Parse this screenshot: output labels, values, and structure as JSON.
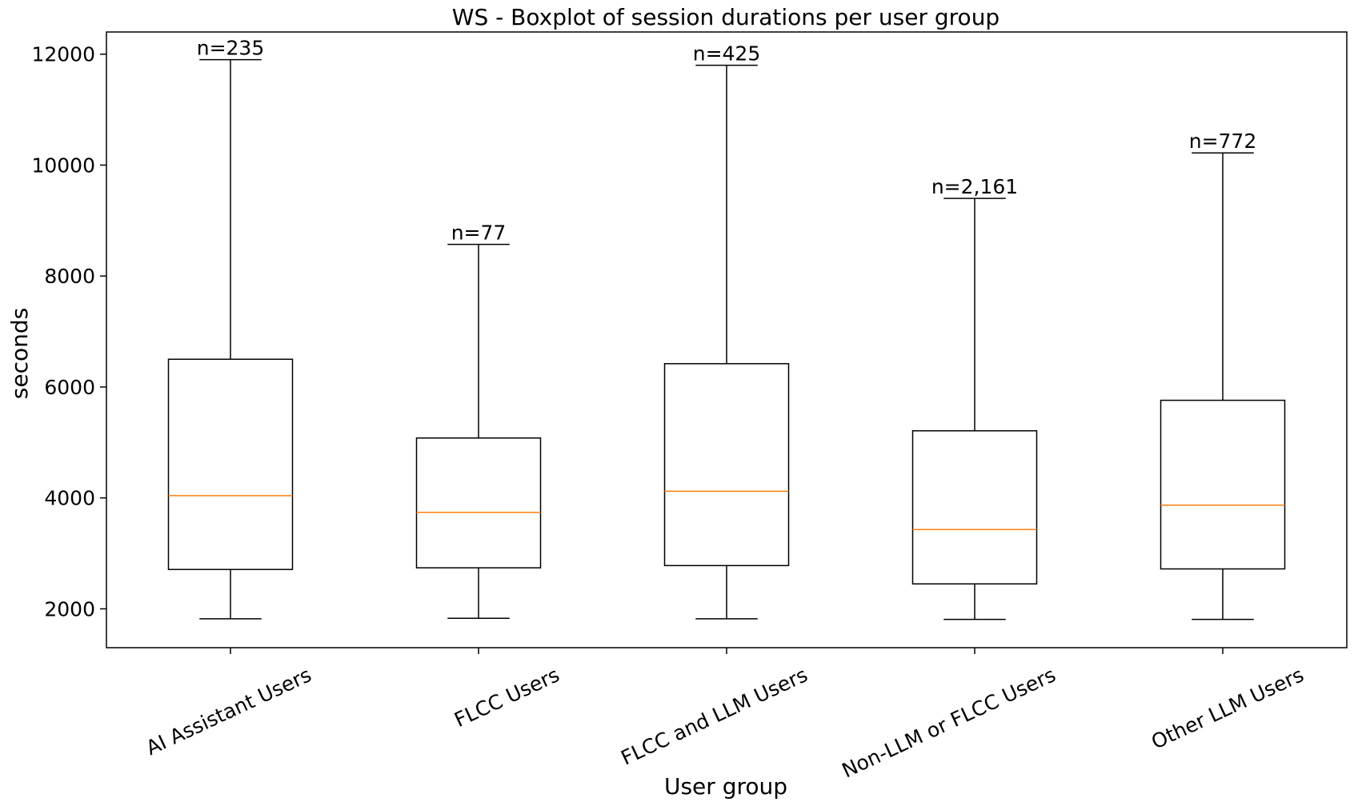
{
  "chart_data": {
    "type": "boxplot",
    "title": "WS - Boxplot of session durations per user group",
    "xlabel": "User group",
    "ylabel": "seconds",
    "ylim": [
      1300,
      12400
    ],
    "yticks": [
      2000,
      4000,
      6000,
      8000,
      10000,
      12000
    ],
    "grid": false,
    "categories": [
      "AI Assistant Users",
      "FLCC Users",
      "FLCC and LLM Users",
      "Non-LLM or FLCC Users",
      "Other LLM Users"
    ],
    "boxes": [
      {
        "whisker_low": 1820,
        "q1": 2710,
        "median": 4040,
        "q3": 6500,
        "whisker_high": 11900,
        "count_label": "n=235"
      },
      {
        "whisker_low": 1830,
        "q1": 2740,
        "median": 3740,
        "q3": 5080,
        "whisker_high": 8570,
        "count_label": "n=77"
      },
      {
        "whisker_low": 1820,
        "q1": 2780,
        "median": 4120,
        "q3": 6420,
        "whisker_high": 11800,
        "count_label": "n=425"
      },
      {
        "whisker_low": 1810,
        "q1": 2450,
        "median": 3430,
        "q3": 5210,
        "whisker_high": 9400,
        "count_label": "n=2,161"
      },
      {
        "whisker_low": 1810,
        "q1": 2720,
        "median": 3870,
        "q3": 5760,
        "whisker_high": 10220,
        "count_label": "n=772"
      }
    ],
    "colors": {
      "box": "#000000",
      "median": "#ff7f0e"
    }
  }
}
